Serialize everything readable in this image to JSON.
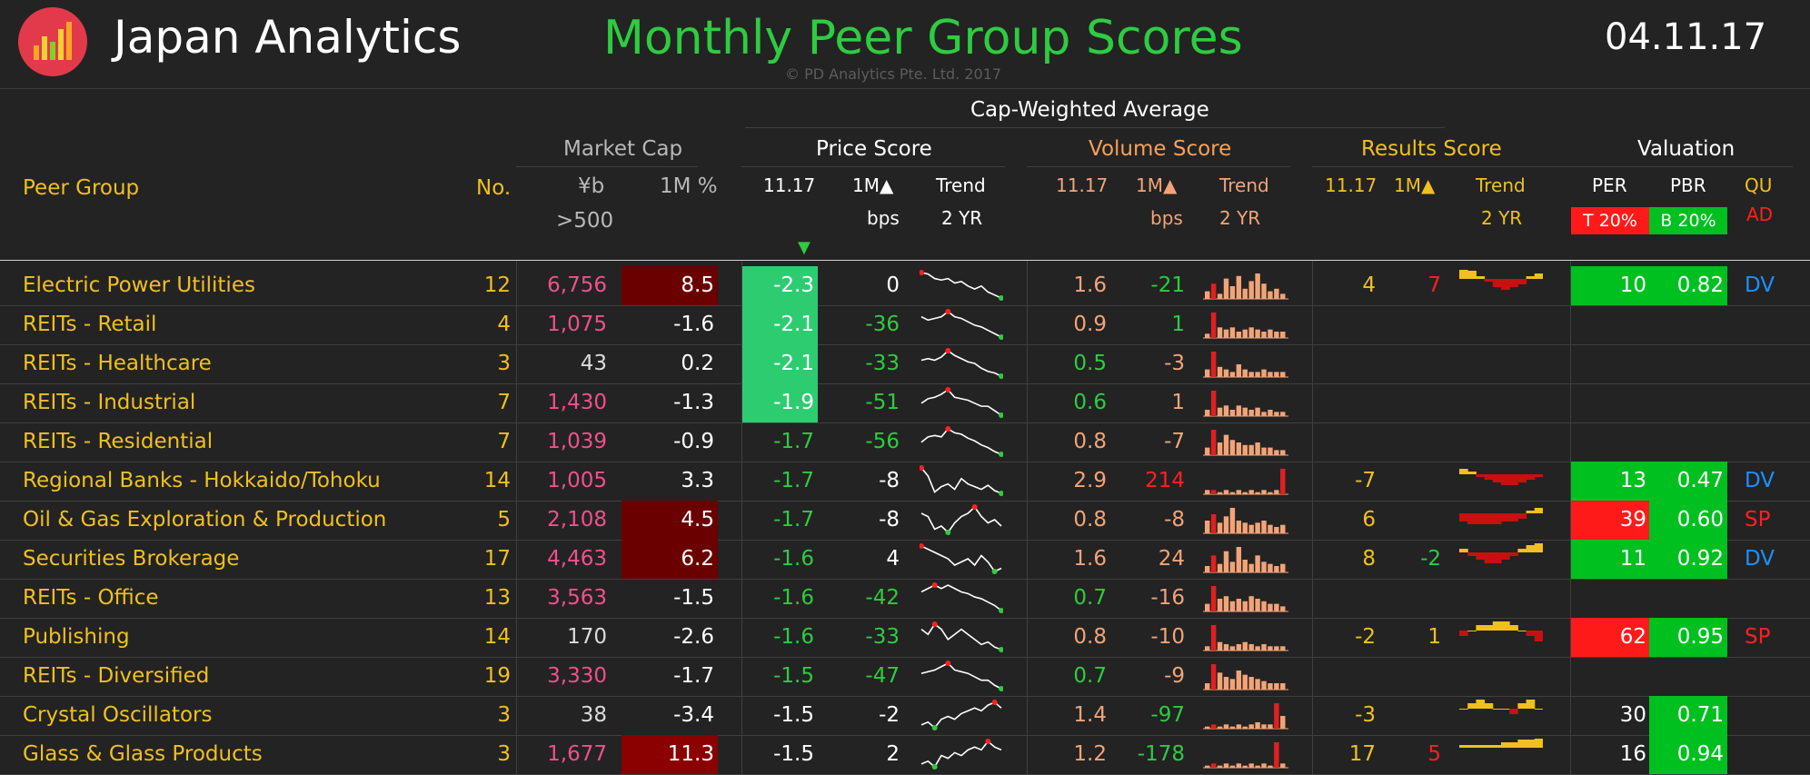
{
  "header": {
    "app_title": "Japan Analytics",
    "page_title": "Monthly Peer Group Scores",
    "date": "04.11.17",
    "copyright": "© PD Analytics Pte. Ltd. 2017"
  },
  "columns": {
    "cap_weighted": "Cap-Weighted Average",
    "market_cap": "Market Cap",
    "price_score": "Price Score",
    "volume_score": "Volume Score",
    "results_score": "Results Score",
    "valuation": "Valuation",
    "peer_group": "Peer Group",
    "no": "No.",
    "yen_b": "¥b",
    "gt500": ">500",
    "m1_pct": "1M %",
    "ps_date": "11.17",
    "ps_1m": "1M▲",
    "ps_trend": "Trend",
    "ps_bps": "bps",
    "ps_2yr": "2 YR",
    "vs_date": "11.17",
    "vs_1m": "1M▲",
    "vs_trend": "Trend",
    "vs_bps": "bps",
    "vs_2yr": "2 YR",
    "rs_date": "11.17",
    "rs_1m": "1M▲",
    "rs_trend": "Trend",
    "rs_2yr": "2 YR",
    "per": "PER",
    "pbr": "PBR",
    "per_badge": "T 20%",
    "pbr_badge": "B 20%",
    "qu_1": "QU",
    "qu_2": "AD",
    "sort_indicator": "▼"
  },
  "colors": {
    "green": "#2ecc40",
    "red": "#ff1a1a",
    "dark_red": "#6b0000",
    "yellow": "#f0c020",
    "pink": "#f0508c"
  },
  "rows": [
    {
      "peer": "Electric Power Utilities",
      "no": "12",
      "cap": "6,756",
      "cap_color": "#f0508c",
      "m1": "8.5",
      "m1_bg": "#6b0000",
      "ps": "-2.3",
      "ps_bg": "#2ecc71",
      "ps_color": "#ffffff",
      "pd": "0",
      "pd_color": "#ffffff",
      "vs": "1.6",
      "vs_color": "#f2a478",
      "vd": "-21",
      "vd_color": "#2ecc40",
      "rs": "4",
      "rd": "7",
      "rd_color": "#ff2020",
      "per": "10",
      "per_bg": "#00c020",
      "pbr": "0.82",
      "pbr_bg": "#00c020",
      "qu": "DV",
      "qu_color": "#1e90ff",
      "has_results": true,
      "price_trend": [
        9,
        10,
        13,
        14,
        13,
        16,
        15,
        18,
        20,
        18,
        22,
        24,
        26
      ],
      "vol_trend": [
        3,
        6,
        2,
        8,
        5,
        9,
        4,
        7,
        10,
        6,
        3,
        4,
        2
      ],
      "vol_spikes": [],
      "res_trend": [
        4,
        3,
        1,
        -1,
        -3,
        -4,
        -3,
        -2,
        1,
        2
      ]
    },
    {
      "peer": "REITs - Retail",
      "no": "4",
      "cap": "1,075",
      "cap_color": "#f0508c",
      "m1": "-1.6",
      "m1_bg": "",
      "ps": "-2.1",
      "ps_bg": "#2ecc71",
      "ps_color": "#ffffff",
      "pd": "-36",
      "pd_color": "#2ecc40",
      "vs": "0.9",
      "vs_color": "#f2a478",
      "vd": "1",
      "vd_color": "#2ecc40",
      "rs": "",
      "rd": "",
      "rd_color": "",
      "per": "",
      "per_bg": "",
      "pbr": "",
      "pbr_bg": "",
      "qu": "",
      "qu_color": "",
      "has_results": false,
      "price_trend": [
        12,
        14,
        13,
        12,
        9,
        12,
        13,
        15,
        17,
        18,
        20,
        22,
        24
      ],
      "vol_trend": [
        2,
        12,
        5,
        4,
        5,
        3,
        4,
        5,
        4,
        3,
        4,
        3,
        3
      ],
      "vol_spikes": [],
      "res_trend": []
    },
    {
      "peer": "REITs - Healthcare",
      "no": "3",
      "cap": "43",
      "cap_color": "#dcdcdc",
      "m1": "0.2",
      "m1_bg": "",
      "ps": "-2.1",
      "ps_bg": "#2ecc71",
      "ps_color": "#ffffff",
      "pd": "-33",
      "pd_color": "#2ecc40",
      "vs": "0.5",
      "vs_color": "#2ecc40",
      "vd": "-3",
      "vd_color": "#f2a478",
      "rs": "",
      "rd": "",
      "rd_color": "",
      "per": "",
      "per_bg": "",
      "pbr": "",
      "pbr_bg": "",
      "qu": "",
      "qu_color": "",
      "has_results": false,
      "price_trend": [
        14,
        13,
        14,
        12,
        8,
        11,
        13,
        15,
        16,
        19,
        21,
        22,
        24
      ],
      "vol_trend": [
        3,
        10,
        4,
        3,
        2,
        5,
        3,
        2,
        2,
        3,
        2,
        2,
        2
      ],
      "vol_spikes": [],
      "res_trend": []
    },
    {
      "peer": "REITs - Industrial",
      "no": "7",
      "cap": "1,430",
      "cap_color": "#f0508c",
      "m1": "-1.3",
      "m1_bg": "",
      "ps": "-1.9",
      "ps_bg": "#2ecc71",
      "ps_color": "#ffffff",
      "pd": "-51",
      "pd_color": "#2ecc40",
      "vs": "0.6",
      "vs_color": "#2ecc40",
      "vd": "1",
      "vd_color": "#f2a478",
      "rs": "",
      "rd": "",
      "rd_color": "",
      "per": "",
      "per_bg": "",
      "pbr": "",
      "pbr_bg": "",
      "qu": "",
      "qu_color": "",
      "has_results": false,
      "price_trend": [
        16,
        13,
        12,
        10,
        7,
        12,
        13,
        14,
        16,
        18,
        18,
        21,
        24
      ],
      "vol_trend": [
        3,
        12,
        4,
        5,
        3,
        5,
        4,
        3,
        4,
        2,
        3,
        2,
        2
      ],
      "vol_spikes": [],
      "res_trend": []
    },
    {
      "peer": "REITs - Residential",
      "no": "7",
      "cap": "1,039",
      "cap_color": "#f0508c",
      "m1": "-0.9",
      "m1_bg": "",
      "ps": "-1.7",
      "ps_bg": "",
      "ps_color": "#2ecc40",
      "pd": "-56",
      "pd_color": "#2ecc40",
      "vs": "0.8",
      "vs_color": "#f2a478",
      "vd": "-7",
      "vd_color": "#f2a478",
      "rs": "",
      "rd": "",
      "rd_color": "",
      "per": "",
      "per_bg": "",
      "pbr": "",
      "pbr_bg": "",
      "qu": "",
      "qu_color": "",
      "has_results": false,
      "price_trend": [
        16,
        12,
        11,
        12,
        6,
        9,
        10,
        13,
        15,
        18,
        20,
        23,
        25
      ],
      "vol_trend": [
        3,
        10,
        5,
        8,
        6,
        5,
        4,
        4,
        5,
        3,
        3,
        2,
        2
      ],
      "vol_spikes": [],
      "res_trend": []
    },
    {
      "peer": "Regional Banks - Hokkaido/Tohoku",
      "no": "14",
      "cap": "1,005",
      "cap_color": "#f0508c",
      "m1": "3.3",
      "m1_bg": "",
      "ps": "-1.7",
      "ps_bg": "",
      "ps_color": "#2ecc40",
      "pd": "-8",
      "pd_color": "#ffffff",
      "vs": "2.9",
      "vs_color": "#f2a478",
      "vd": "214",
      "vd_color": "#ff2020",
      "rs": "-7",
      "rd": "",
      "rd_color": "",
      "per": "13",
      "per_bg": "#00c020",
      "pbr": "0.47",
      "pbr_bg": "#00c020",
      "qu": "DV",
      "qu_color": "#1e90ff",
      "has_results": true,
      "price_trend": [
        4,
        10,
        22,
        18,
        16,
        20,
        12,
        16,
        18,
        20,
        17,
        21,
        23
      ],
      "vol_trend": [
        2,
        2,
        1,
        2,
        1,
        2,
        1,
        2,
        1,
        2,
        1,
        2,
        12
      ],
      "vol_spikes": [
        12
      ],
      "res_trend": [
        2,
        1,
        -1,
        -2,
        -3,
        -4,
        -4,
        -3,
        -2,
        -1
      ]
    },
    {
      "peer": "Oil & Gas Exploration & Production",
      "no": "5",
      "cap": "2,108",
      "cap_color": "#f0508c",
      "m1": "4.5",
      "m1_bg": "#6b0000",
      "ps": "-1.7",
      "ps_bg": "",
      "ps_color": "#2ecc40",
      "pd": "-8",
      "pd_color": "#ffffff",
      "vs": "0.8",
      "vs_color": "#f2a478",
      "vd": "-8",
      "vd_color": "#f2a478",
      "rs": "6",
      "rd": "",
      "rd_color": "",
      "per": "39",
      "per_bg": "#ff1a1a",
      "pbr": "0.60",
      "pbr_bg": "#00c020",
      "qu": "SP",
      "qu_color": "#ff2020",
      "has_results": true,
      "price_trend": [
        12,
        14,
        22,
        20,
        24,
        18,
        14,
        12,
        8,
        14,
        18,
        16,
        20
      ],
      "vol_trend": [
        6,
        9,
        5,
        8,
        12,
        6,
        5,
        4,
        5,
        6,
        4,
        3,
        4
      ],
      "vol_spikes": [],
      "res_trend": [
        -3,
        -4,
        -4,
        -4,
        -4,
        -3,
        -3,
        -2,
        1,
        2
      ]
    },
    {
      "peer": "Securities Brokerage",
      "no": "17",
      "cap": "4,463",
      "cap_color": "#f0508c",
      "m1": "6.2",
      "m1_bg": "#6b0000",
      "ps": "-1.6",
      "ps_bg": "",
      "ps_color": "#2ecc40",
      "pd": "4",
      "pd_color": "#ffffff",
      "vs": "1.6",
      "vs_color": "#f2a478",
      "vd": "24",
      "vd_color": "#f2a478",
      "rs": "8",
      "rd": "-2",
      "rd_color": "#2ecc40",
      "per": "11",
      "per_bg": "#00c020",
      "pbr": "0.92",
      "pbr_bg": "#00c020",
      "qu": "DV",
      "qu_color": "#1e90ff",
      "has_results": true,
      "price_trend": [
        8,
        10,
        12,
        14,
        16,
        20,
        18,
        16,
        20,
        14,
        18,
        24,
        22
      ],
      "vol_trend": [
        3,
        8,
        4,
        10,
        5,
        12,
        6,
        4,
        8,
        5,
        4,
        3,
        4
      ],
      "vol_spikes": [],
      "res_trend": [
        1,
        -1,
        -2,
        -3,
        -3,
        -2,
        -1,
        1,
        2,
        3
      ]
    },
    {
      "peer": "REITs - Office",
      "no": "13",
      "cap": "3,563",
      "cap_color": "#f0508c",
      "m1": "-1.5",
      "m1_bg": "",
      "ps": "-1.6",
      "ps_bg": "",
      "ps_color": "#2ecc40",
      "pd": "-42",
      "pd_color": "#2ecc40",
      "vs": "0.7",
      "vs_color": "#2ecc40",
      "vd": "-16",
      "vd_color": "#f2a478",
      "rs": "",
      "rd": "",
      "rd_color": "",
      "per": "",
      "per_bg": "",
      "pbr": "",
      "pbr_bg": "",
      "qu": "",
      "qu_color": "",
      "has_results": false,
      "price_trend": [
        14,
        12,
        10,
        12,
        10,
        12,
        14,
        15,
        17,
        18,
        20,
        22,
        25
      ],
      "vol_trend": [
        3,
        10,
        5,
        6,
        4,
        5,
        4,
        6,
        5,
        4,
        3,
        3,
        2
      ],
      "vol_spikes": [],
      "res_trend": []
    },
    {
      "peer": "Publishing",
      "no": "14",
      "cap": "170",
      "cap_color": "#dcdcdc",
      "m1": "-2.6",
      "m1_bg": "",
      "ps": "-1.6",
      "ps_bg": "",
      "ps_color": "#2ecc40",
      "pd": "-33",
      "pd_color": "#2ecc40",
      "vs": "0.8",
      "vs_color": "#f2a478",
      "vd": "-10",
      "vd_color": "#f2a478",
      "rs": "-2",
      "rd": "1",
      "rd_color": "#f0c020",
      "per": "62",
      "per_bg": "#ff1a1a",
      "pbr": "0.95",
      "pbr_bg": "#00c020",
      "qu": "SP",
      "qu_color": "#ff2020",
      "has_results": true,
      "price_trend": [
        12,
        14,
        10,
        12,
        16,
        14,
        12,
        14,
        16,
        18,
        17,
        19,
        20
      ],
      "vol_trend": [
        2,
        12,
        4,
        3,
        2,
        3,
        4,
        3,
        2,
        3,
        2,
        2,
        2
      ],
      "vol_spikes": [],
      "res_trend": [
        -1,
        0,
        1,
        1,
        2,
        2,
        1,
        0,
        -1,
        -2
      ]
    },
    {
      "peer": "REITs - Diversified",
      "no": "19",
      "cap": "3,330",
      "cap_color": "#f0508c",
      "m1": "-1.7",
      "m1_bg": "",
      "ps": "-1.5",
      "ps_bg": "",
      "ps_color": "#2ecc40",
      "pd": "-47",
      "pd_color": "#2ecc40",
      "vs": "0.7",
      "vs_color": "#2ecc40",
      "vd": "-9",
      "vd_color": "#f2a478",
      "rs": "",
      "rd": "",
      "rd_color": "",
      "per": "",
      "per_bg": "",
      "pbr": "",
      "pbr_bg": "",
      "qu": "",
      "qu_color": "",
      "has_results": false,
      "price_trend": [
        14,
        13,
        12,
        10,
        8,
        12,
        13,
        14,
        16,
        18,
        18,
        21,
        23
      ],
      "vol_trend": [
        3,
        12,
        8,
        6,
        5,
        9,
        7,
        6,
        5,
        4,
        3,
        3,
        3
      ],
      "vol_spikes": [],
      "res_trend": []
    },
    {
      "peer": "Crystal Oscillators",
      "no": "3",
      "cap": "38",
      "cap_color": "#dcdcdc",
      "m1": "-3.4",
      "m1_bg": "",
      "ps": "-1.5",
      "ps_bg": "",
      "ps_color": "#ffffff",
      "pd": "-2",
      "pd_color": "#ffffff",
      "vs": "1.4",
      "vs_color": "#f2a478",
      "vd": "-97",
      "vd_color": "#2ecc40",
      "rs": "-3",
      "rd": "",
      "rd_color": "",
      "per": "30",
      "per_bg": "",
      "pbr": "0.71",
      "pbr_bg": "#00c020",
      "qu": "",
      "qu_color": "",
      "has_results": true,
      "price_trend": [
        22,
        20,
        24,
        18,
        16,
        18,
        14,
        12,
        10,
        12,
        8,
        6,
        10
      ],
      "vol_trend": [
        1,
        2,
        1,
        2,
        1,
        2,
        1,
        2,
        3,
        2,
        2,
        12,
        6
      ],
      "vol_spikes": [
        11
      ],
      "res_trend": [
        0,
        1,
        2,
        1,
        0,
        0,
        -1,
        1,
        2,
        0
      ]
    },
    {
      "peer": "Glass & Glass Products",
      "no": "3",
      "cap": "1,677",
      "cap_color": "#f0508c",
      "m1": "11.3",
      "m1_bg": "#8b0000",
      "ps": "-1.5",
      "ps_bg": "",
      "ps_color": "#ffffff",
      "pd": "2",
      "pd_color": "#ffffff",
      "vs": "1.2",
      "vs_color": "#f2a478",
      "vd": "-178",
      "vd_color": "#2ecc40",
      "rs": "17",
      "rd": "5",
      "rd_color": "#ff2020",
      "per": "16",
      "per_bg": "",
      "pbr": "0.94",
      "pbr_bg": "#00c020",
      "qu": "",
      "qu_color": "",
      "has_results": true,
      "price_trend": [
        22,
        20,
        24,
        16,
        18,
        14,
        16,
        12,
        10,
        12,
        6,
        10,
        12
      ],
      "vol_trend": [
        1,
        2,
        1,
        2,
        1,
        2,
        1,
        2,
        1,
        2,
        1,
        12,
        2
      ],
      "vol_spikes": [
        11
      ],
      "res_trend": [
        1,
        1,
        1,
        1,
        1,
        2,
        2,
        3,
        3,
        4
      ]
    }
  ]
}
